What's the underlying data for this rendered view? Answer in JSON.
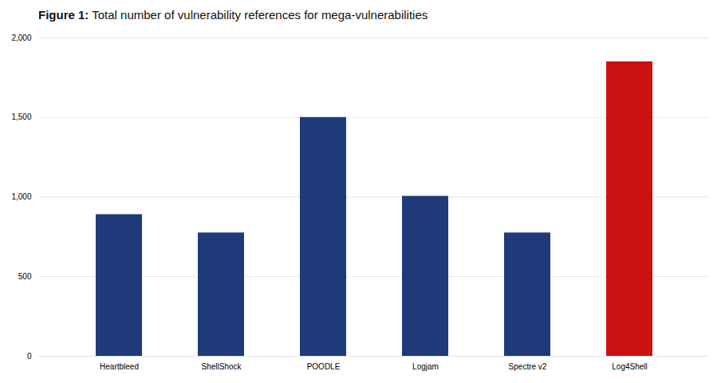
{
  "chart_data": {
    "type": "bar",
    "title": "Figure 1: Total number of vulnerability references for mega-vulnerabilities",
    "categories": [
      "Heartbleed",
      "ShellShock",
      "POODLE",
      "Logjam",
      "Spectre v2",
      "Log4Shell"
    ],
    "values": [
      890,
      775,
      1500,
      1005,
      775,
      1850
    ],
    "colors": [
      "#1e3a78",
      "#1e3a78",
      "#1e3a78",
      "#1e3a78",
      "#1e3a78",
      "#cc1111"
    ],
    "ylim": [
      0,
      2000
    ],
    "yticks": [
      0,
      500,
      {
        "value": 1000,
        "label": "1,000"
      },
      {
        "value": 1500,
        "label": "1,500"
      },
      {
        "value": 2000,
        "label": "2,000"
      }
    ],
    "grid": true
  }
}
